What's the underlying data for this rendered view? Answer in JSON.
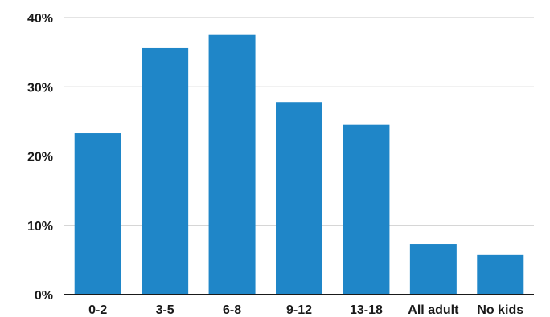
{
  "chart_data": {
    "type": "bar",
    "categories": [
      "0-2",
      "3-5",
      "6-8",
      "9-12",
      "13-18",
      "All adult",
      "No kids"
    ],
    "values": [
      23.3,
      35.6,
      37.6,
      27.8,
      24.5,
      7.3,
      5.7
    ],
    "ylim": [
      0,
      40
    ],
    "yticks": [
      "0%",
      "10%",
      "20%",
      "30%",
      "40%"
    ],
    "ytick_values": [
      0,
      10,
      20,
      30,
      40
    ],
    "grid": true,
    "bar_color": "#1f86c8",
    "grid_color": "#c8c8c8",
    "axis_color": "#1a1a1a"
  }
}
